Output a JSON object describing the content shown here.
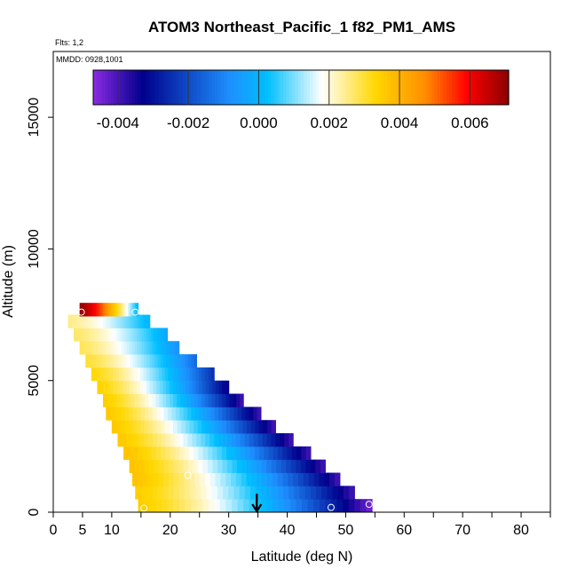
{
  "chart_data": {
    "type": "heatmap",
    "title": "ATOM3 Northeast_Pacific_1 f82_PM1_AMS",
    "flights_label": "Flts: 1,2",
    "date_label": "MMDD: 0928,1001",
    "xlabel": "Latitude (deg N)",
    "ylabel": "Altitude (m)",
    "xlim": [
      0,
      85
    ],
    "ylim": [
      0,
      17500
    ],
    "x_ticks": [
      0,
      5,
      10,
      20,
      30,
      40,
      50,
      60,
      70,
      80
    ],
    "y_ticks": [
      0,
      5000,
      10000,
      15000
    ],
    "colorbar": {
      "min": -0.0047,
      "max": 0.0071,
      "ticks": [
        -0.004,
        -0.002,
        0.0,
        0.002,
        0.004,
        0.006
      ],
      "tick_labels": [
        "-0.004",
        "-0.002",
        "0.000",
        "0.002",
        "0.004",
        "0.006"
      ],
      "colors": [
        "#8a2be2",
        "#00008b",
        "#1e90ff",
        "#00bfff",
        "#ffffff",
        "#ffd700",
        "#ff8c00",
        "#ff0000",
        "#8b0000"
      ]
    },
    "rows": [
      {
        "alt": 250,
        "lat_start": 14.5,
        "lat_end": 54.5,
        "v_start": 0.0035,
        "v_end": -0.0045
      },
      {
        "alt": 750,
        "lat_start": 14.0,
        "lat_end": 51.5,
        "v_start": 0.0035,
        "v_end": -0.004
      },
      {
        "alt": 1250,
        "lat_start": 13.5,
        "lat_end": 49.0,
        "v_start": 0.0037,
        "v_end": -0.004
      },
      {
        "alt": 1750,
        "lat_start": 13.0,
        "lat_end": 46.5,
        "v_start": 0.0037,
        "v_end": -0.004
      },
      {
        "alt": 2250,
        "lat_start": 12.0,
        "lat_end": 44.0,
        "v_start": 0.0037,
        "v_end": -0.004
      },
      {
        "alt": 2750,
        "lat_start": 11.0,
        "lat_end": 41.0,
        "v_start": 0.0036,
        "v_end": -0.004
      },
      {
        "alt": 3250,
        "lat_start": 10.0,
        "lat_end": 38.0,
        "v_start": 0.0036,
        "v_end": -0.004
      },
      {
        "alt": 3750,
        "lat_start": 9.0,
        "lat_end": 35.5,
        "v_start": 0.0036,
        "v_end": -0.004
      },
      {
        "alt": 4250,
        "lat_start": 8.5,
        "lat_end": 32.5,
        "v_start": 0.0035,
        "v_end": -0.004
      },
      {
        "alt": 4750,
        "lat_start": 7.5,
        "lat_end": 30.0,
        "v_start": 0.0034,
        "v_end": -0.0035
      },
      {
        "alt": 5250,
        "lat_start": 6.5,
        "lat_end": 27.5,
        "v_start": 0.0033,
        "v_end": -0.0025
      },
      {
        "alt": 5750,
        "lat_start": 5.5,
        "lat_end": 24.5,
        "v_start": 0.003,
        "v_end": -0.0015
      },
      {
        "alt": 6250,
        "lat_start": 4.5,
        "lat_end": 21.5,
        "v_start": 0.0028,
        "v_end": -0.0008
      },
      {
        "alt": 6750,
        "lat_start": 3.5,
        "lat_end": 19.5,
        "v_start": 0.0027,
        "v_end": -0.0003
      },
      {
        "alt": 7250,
        "lat_start": 2.5,
        "lat_end": 16.5,
        "v_start": 0.0025,
        "v_end": 0.0
      },
      {
        "alt": 7700,
        "lat_start": 4.5,
        "lat_end": 14.5,
        "v_start": 0.007,
        "v_end": 0.0
      }
    ],
    "markers": [
      {
        "lat": 4.8,
        "alt": 7600
      },
      {
        "lat": 14.0,
        "alt": 7600
      },
      {
        "lat": 23.0,
        "alt": 1400
      },
      {
        "lat": 15.5,
        "alt": 150
      },
      {
        "lat": 47.5,
        "alt": 180
      },
      {
        "lat": 54.0,
        "alt": 300
      }
    ],
    "arrow": {
      "lat": 34.8,
      "alt_top": 700,
      "alt_bottom": 0
    }
  }
}
